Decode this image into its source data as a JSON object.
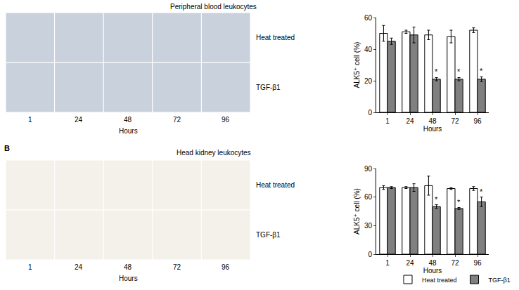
{
  "chart_data": [
    {
      "type": "bar",
      "categories": [
        "1",
        "24",
        "48",
        "72",
        "96"
      ],
      "x_label": "Hours",
      "y_label": "ALK5⁺ cell (%)",
      "ylim": [
        0,
        60
      ],
      "yticks": [
        0,
        20,
        40,
        60
      ],
      "series": [
        {
          "name": "Heat treated",
          "color": "#ffffff",
          "values": [
            50,
            51,
            49,
            48,
            52
          ],
          "errors": [
            5,
            1,
            3,
            4,
            1.5
          ]
        },
        {
          "name": "TGF-β1",
          "color": "#808080",
          "values": [
            45,
            49,
            21,
            21,
            21
          ],
          "errors": [
            2,
            5,
            1,
            1,
            1.5
          ]
        }
      ],
      "annotations": [
        {
          "category": "48",
          "series": "TGF-β1",
          "text": "*"
        },
        {
          "category": "72",
          "series": "TGF-β1",
          "text": "*"
        },
        {
          "category": "96",
          "series": "TGF-β1",
          "text": "*"
        }
      ]
    },
    {
      "type": "bar",
      "categories": [
        "1",
        "24",
        "48",
        "72",
        "96"
      ],
      "x_label": "Hours",
      "y_label": "ALK5⁺ cell (%)",
      "ylim": [
        0,
        90
      ],
      "yticks": [
        0,
        30,
        60,
        90
      ],
      "legend": "bottom",
      "series": [
        {
          "name": "Heat treated",
          "color": "#ffffff",
          "values": [
            70,
            70,
            72,
            69,
            69
          ],
          "errors": [
            2,
            1,
            10,
            1,
            2
          ]
        },
        {
          "name": "TGF-β1",
          "color": "#808080",
          "values": [
            70,
            70,
            50,
            48,
            55
          ],
          "errors": [
            1,
            4,
            2,
            1,
            5
          ]
        }
      ],
      "annotations": [
        {
          "category": "48",
          "series": "TGF-β1",
          "text": "*"
        },
        {
          "category": "72",
          "series": "TGF-β1",
          "text": "*"
        },
        {
          "category": "96",
          "series": "TGF-β1",
          "text": "*"
        }
      ]
    }
  ],
  "image_panels": [
    {
      "title": "Peripheral blood leukocytes",
      "rows": [
        "Heat treated",
        "TGF-β1"
      ],
      "columns": [
        "1",
        "24",
        "48",
        "72",
        "96"
      ],
      "x_label": "Hours"
    },
    {
      "letter": "B",
      "title": "Head kidney leukocytes",
      "rows": [
        "Heat treated",
        "TGF-β1"
      ],
      "columns": [
        "1",
        "24",
        "48",
        "72",
        "96"
      ],
      "x_label": "Hours"
    }
  ]
}
